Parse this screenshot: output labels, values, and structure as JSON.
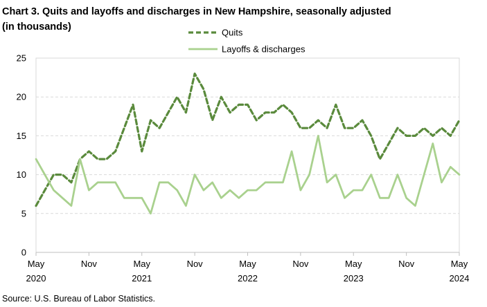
{
  "title_line1": "Chart 3. Quits and layoffs and discharges in New Hampshire, seasonally adjusted",
  "title_line2": "(in thousands)",
  "source": "Source: U.S. Bureau of Labor Statistics.",
  "colors": {
    "quits": "#5a8a3c",
    "layoffs": "#a9d18e",
    "grid": "#d9d9d9",
    "axis": "#bfbfbf"
  },
  "chart_data": {
    "type": "line",
    "title": "Chart 3. Quits and layoffs and discharges in New Hampshire, seasonally adjusted (in thousands)",
    "xlabel": "",
    "ylabel": "",
    "ylim": [
      0,
      25
    ],
    "yticks": [
      0,
      5,
      10,
      15,
      20,
      25
    ],
    "grid": true,
    "legend_position": "top-center",
    "x_start": "2020-05",
    "x_end": "2024-05",
    "x_tick_labels": [
      {
        "month": "May",
        "year": "2020",
        "date": "2020-05"
      },
      {
        "month": "Nov",
        "year": "",
        "date": "2020-11"
      },
      {
        "month": "May",
        "year": "2021",
        "date": "2021-05"
      },
      {
        "month": "Nov",
        "year": "",
        "date": "2021-11"
      },
      {
        "month": "May",
        "year": "2022",
        "date": "2022-05"
      },
      {
        "month": "Nov",
        "year": "",
        "date": "2022-11"
      },
      {
        "month": "May",
        "year": "2023",
        "date": "2023-05"
      },
      {
        "month": "Nov",
        "year": "",
        "date": "2023-11"
      },
      {
        "month": "May",
        "year": "2024",
        "date": "2024-05"
      }
    ],
    "series": [
      {
        "name": "Quits",
        "style": "dashed",
        "values": [
          6,
          8,
          10,
          10,
          9,
          12,
          13,
          12,
          12,
          13,
          16,
          19,
          13,
          17,
          16,
          18,
          20,
          18,
          23,
          21,
          17,
          20,
          18,
          19,
          19,
          17,
          18,
          18,
          19,
          18,
          16,
          16,
          17,
          16,
          19,
          16,
          16,
          17,
          15,
          12,
          14,
          16,
          15,
          15,
          16,
          15,
          16,
          15,
          17
        ]
      },
      {
        "name": "Layoffs & discharges",
        "style": "solid",
        "values": [
          12,
          10,
          8,
          7,
          6,
          12,
          8,
          9,
          9,
          9,
          7,
          7,
          7,
          5,
          9,
          9,
          8,
          6,
          10,
          8,
          9,
          7,
          8,
          7,
          8,
          8,
          9,
          9,
          9,
          13,
          8,
          10,
          15,
          9,
          10,
          7,
          8,
          8,
          10,
          7,
          7,
          10,
          7,
          6,
          10,
          14,
          9,
          11,
          10
        ]
      }
    ]
  }
}
